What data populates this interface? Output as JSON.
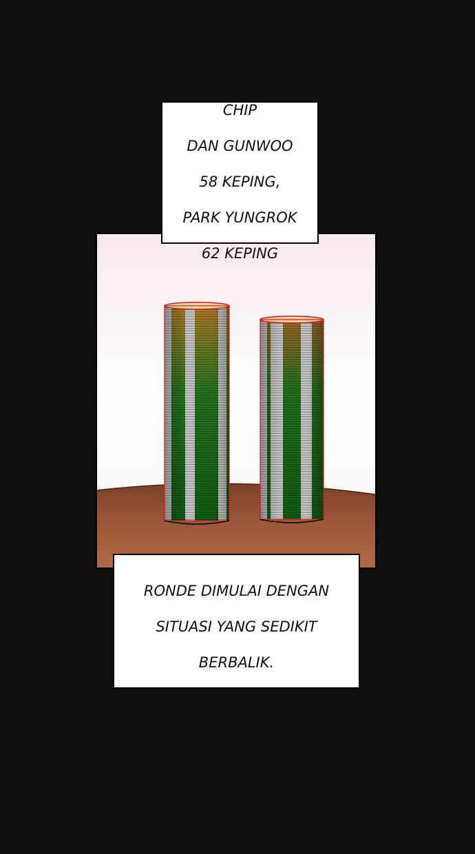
{
  "caption_top": {
    "lines": [
      "CHIP",
      "DAN GUNWOO",
      "58 KEPING,",
      "PARK YUNGROK",
      "62 KEPING"
    ]
  },
  "caption_bottom": {
    "lines": [
      "RONDE DIMULAI DENGAN",
      "SITUASI YANG SEDIKIT",
      "BERBALIK."
    ]
  },
  "colors": {
    "background": "#0f0f0f",
    "chip_green": "#1f8a1f",
    "chip_white": "#f4f4f4",
    "chip_orange": "#d9962a",
    "chip_edge": "#c81e1e",
    "table_wood": "#8a4a30"
  }
}
